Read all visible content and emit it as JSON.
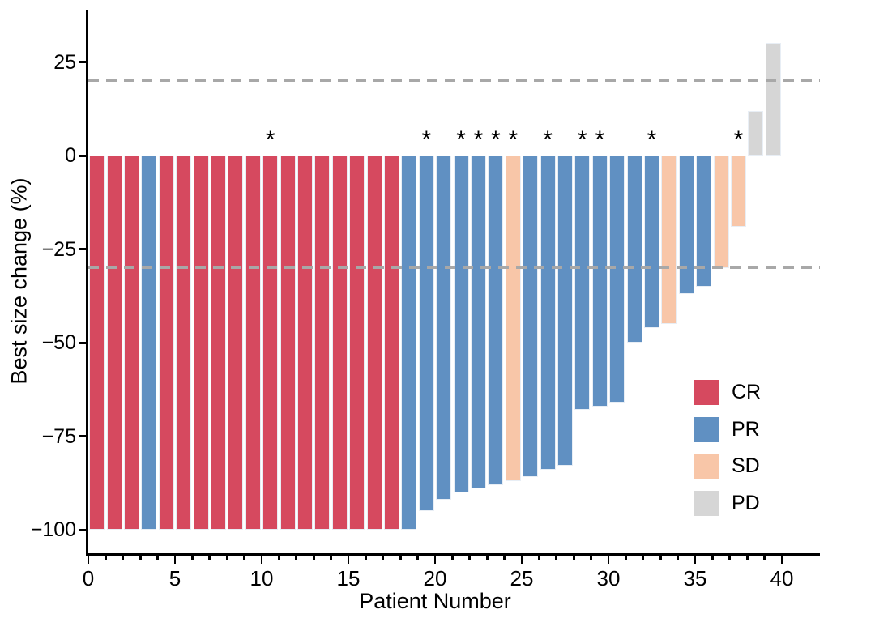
{
  "chart_data": {
    "type": "bar",
    "subtype": "waterfall",
    "title": "",
    "xlabel": "Patient Number",
    "ylabel": "Best size change (%)",
    "xlim": [
      0,
      40
    ],
    "ylim": [
      -106,
      39
    ],
    "grid": false,
    "legend_position": "inside-right",
    "x_ticks": [
      {
        "value": 0,
        "label": "0"
      },
      {
        "value": 5,
        "label": "5"
      },
      {
        "value": 10,
        "label": "10"
      },
      {
        "value": 15,
        "label": "15"
      },
      {
        "value": 20,
        "label": "20"
      },
      {
        "value": 25,
        "label": "25"
      },
      {
        "value": 30,
        "label": "30"
      },
      {
        "value": 35,
        "label": "35"
      },
      {
        "value": 40,
        "label": "40"
      }
    ],
    "x_minor_tick_every": 1,
    "y_ticks": [
      {
        "value": 25,
        "label": "25"
      },
      {
        "value": 0,
        "label": "0"
      },
      {
        "value": -25,
        "label": "−25"
      },
      {
        "value": -50,
        "label": "−50"
      },
      {
        "value": -75,
        "label": "−75"
      },
      {
        "value": -100,
        "label": "−100"
      }
    ],
    "reference_lines": [
      {
        "y": 20,
        "style": "dashed",
        "color": "#a8a8a8"
      },
      {
        "y": -30,
        "style": "dashed",
        "color": "#a8a8a8"
      }
    ],
    "legend": [
      {
        "key": "CR",
        "label": "CR",
        "color": "#d6495f"
      },
      {
        "key": "PR",
        "label": "PR",
        "color": "#6090c2"
      },
      {
        "key": "SD",
        "label": "SD",
        "color": "#f8c6a8"
      },
      {
        "key": "PD",
        "label": "PD",
        "color": "#d6d6d6"
      }
    ],
    "marker_glyph": "*",
    "patients": [
      {
        "number": 1,
        "value": -100,
        "response": "CR",
        "marked": false
      },
      {
        "number": 2,
        "value": -100,
        "response": "CR",
        "marked": false
      },
      {
        "number": 3,
        "value": -100,
        "response": "CR",
        "marked": false
      },
      {
        "number": 4,
        "value": -100,
        "response": "PR",
        "marked": false
      },
      {
        "number": 5,
        "value": -100,
        "response": "CR",
        "marked": false
      },
      {
        "number": 6,
        "value": -100,
        "response": "CR",
        "marked": false
      },
      {
        "number": 7,
        "value": -100,
        "response": "CR",
        "marked": false
      },
      {
        "number": 8,
        "value": -100,
        "response": "CR",
        "marked": false
      },
      {
        "number": 9,
        "value": -100,
        "response": "CR",
        "marked": false
      },
      {
        "number": 10,
        "value": -100,
        "response": "CR",
        "marked": false
      },
      {
        "number": 11,
        "value": -100,
        "response": "CR",
        "marked": true
      },
      {
        "number": 12,
        "value": -100,
        "response": "CR",
        "marked": false
      },
      {
        "number": 13,
        "value": -100,
        "response": "CR",
        "marked": false
      },
      {
        "number": 14,
        "value": -100,
        "response": "CR",
        "marked": false
      },
      {
        "number": 15,
        "value": -100,
        "response": "CR",
        "marked": false
      },
      {
        "number": 16,
        "value": -100,
        "response": "CR",
        "marked": false
      },
      {
        "number": 17,
        "value": -100,
        "response": "CR",
        "marked": false
      },
      {
        "number": 18,
        "value": -100,
        "response": "CR",
        "marked": false
      },
      {
        "number": 19,
        "value": -100,
        "response": "PR",
        "marked": false
      },
      {
        "number": 20,
        "value": -95,
        "response": "PR",
        "marked": true
      },
      {
        "number": 21,
        "value": -92,
        "response": "PR",
        "marked": false
      },
      {
        "number": 22,
        "value": -90,
        "response": "PR",
        "marked": true
      },
      {
        "number": 23,
        "value": -89,
        "response": "PR",
        "marked": true
      },
      {
        "number": 24,
        "value": -88,
        "response": "PR",
        "marked": true
      },
      {
        "number": 25,
        "value": -87,
        "response": "SD",
        "marked": true
      },
      {
        "number": 26,
        "value": -86,
        "response": "PR",
        "marked": false
      },
      {
        "number": 27,
        "value": -84,
        "response": "PR",
        "marked": true
      },
      {
        "number": 28,
        "value": -83,
        "response": "PR",
        "marked": false
      },
      {
        "number": 29,
        "value": -68,
        "response": "PR",
        "marked": true
      },
      {
        "number": 30,
        "value": -67,
        "response": "PR",
        "marked": true
      },
      {
        "number": 31,
        "value": -66,
        "response": "PR",
        "marked": false
      },
      {
        "number": 32,
        "value": -50,
        "response": "PR",
        "marked": false
      },
      {
        "number": 33,
        "value": -46,
        "response": "PR",
        "marked": true
      },
      {
        "number": 34,
        "value": -45,
        "response": "SD",
        "marked": false
      },
      {
        "number": 35,
        "value": -37,
        "response": "PR",
        "marked": false
      },
      {
        "number": 36,
        "value": -35,
        "response": "PR",
        "marked": false
      },
      {
        "number": 37,
        "value": -30,
        "response": "SD",
        "marked": false
      },
      {
        "number": 38,
        "value": -19,
        "response": "SD",
        "marked": true
      },
      {
        "number": 39,
        "value": 12,
        "response": "PD",
        "marked": false
      },
      {
        "number": 40,
        "value": 30,
        "response": "PD",
        "marked": false
      }
    ]
  },
  "colors": {
    "background": "#ffffff",
    "axis": "#000000",
    "bar_border": "#e8eef5",
    "marker": "#000000"
  }
}
